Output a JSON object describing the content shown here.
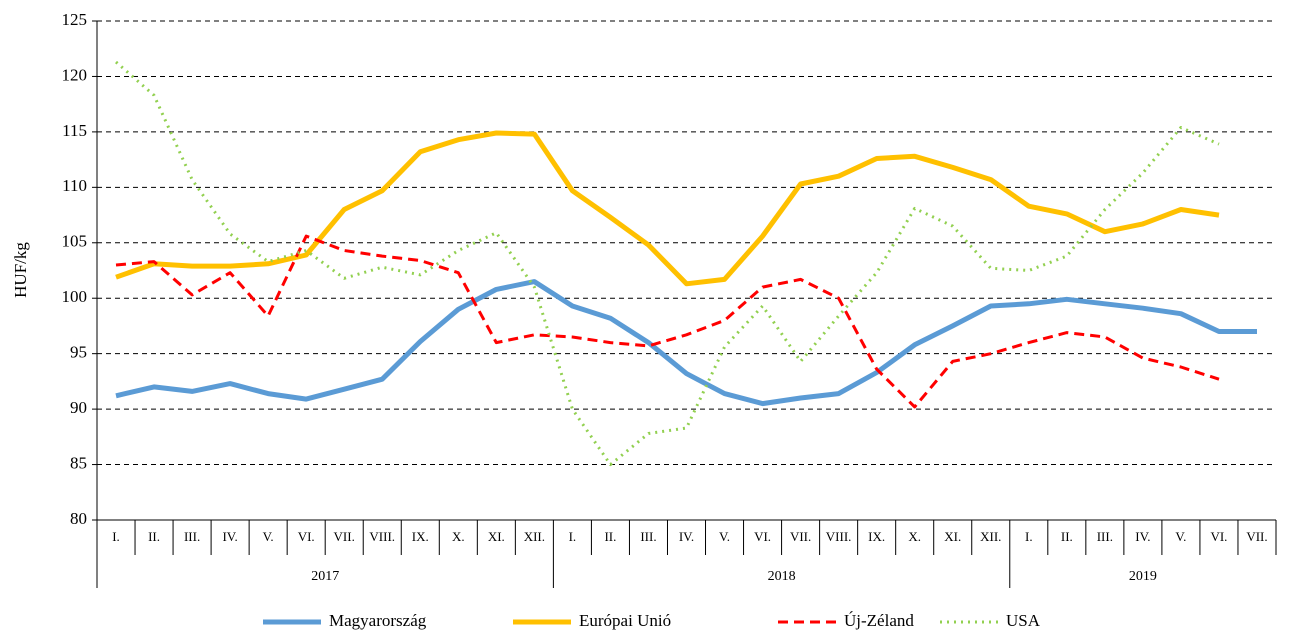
{
  "chart_data": {
    "type": "line",
    "y_label": "HUF/kg",
    "groups": [
      {
        "name": "2017",
        "categories": [
          "I.",
          "II.",
          "III.",
          "IV.",
          "V.",
          "VI.",
          "VII.",
          "VIII.",
          "IX.",
          "X.",
          "XI.",
          "XII."
        ]
      },
      {
        "name": "2018",
        "categories": [
          "I.",
          "II.",
          "III.",
          "IV.",
          "V.",
          "VI.",
          "VII.",
          "VIII.",
          "IX.",
          "X.",
          "XI.",
          "XII."
        ]
      },
      {
        "name": "2019",
        "categories": [
          "I.",
          "II.",
          "III.",
          "IV.",
          "V.",
          "VI.",
          "VII."
        ]
      }
    ],
    "series": [
      {
        "name": "Magyarország",
        "color": "#5b9bd5",
        "dash": "solid",
        "values": [
          91.2,
          92.0,
          91.6,
          92.3,
          91.4,
          90.9,
          91.8,
          92.7,
          96.1,
          99.0,
          100.8,
          101.5,
          99.3,
          98.2,
          96.0,
          93.2,
          91.4,
          90.5,
          91.0,
          91.4,
          93.3,
          95.8,
          97.5,
          99.3,
          99.5,
          99.9,
          99.5,
          99.1,
          98.6,
          97.0,
          97.0
        ]
      },
      {
        "name": "Európai Unió",
        "color": "#ffc000",
        "dash": "solid",
        "values": [
          101.9,
          103.1,
          102.9,
          102.9,
          103.1,
          103.9,
          108.0,
          109.7,
          113.2,
          114.3,
          114.9,
          114.8,
          109.7,
          107.3,
          104.8,
          101.3,
          101.7,
          105.6,
          110.3,
          111.0,
          112.6,
          112.8,
          111.8,
          110.7,
          108.3,
          107.6,
          106.0,
          106.7,
          108.0,
          107.5,
          null
        ]
      },
      {
        "name": "Új-Zéland",
        "color": "#ff0000",
        "dash": "dashed",
        "values": [
          103.0,
          103.3,
          100.3,
          102.3,
          98.4,
          105.6,
          104.3,
          103.8,
          103.4,
          102.3,
          96.0,
          96.7,
          96.5,
          96.0,
          95.7,
          96.7,
          98.0,
          101.0,
          101.7,
          100.0,
          93.6,
          90.2,
          94.3,
          95.0,
          96.0,
          96.9,
          96.5,
          94.6,
          93.8,
          92.7,
          null
        ]
      },
      {
        "name": "USA",
        "color": "#92d050",
        "dash": "dotted",
        "values": [
          121.3,
          118.3,
          110.7,
          105.8,
          103.3,
          104.3,
          101.8,
          102.8,
          102.1,
          104.3,
          105.9,
          101.0,
          90.0,
          85.0,
          87.8,
          88.3,
          95.6,
          99.3,
          94.3,
          98.4,
          102.3,
          108.1,
          106.5,
          102.7,
          102.5,
          103.8,
          108.0,
          111.3,
          115.4,
          113.9,
          null
        ]
      }
    ],
    "ylim": [
      80,
      125
    ],
    "yticks": [
      80,
      85,
      90,
      95,
      100,
      105,
      110,
      115,
      120,
      125
    ],
    "grid": true,
    "legend": "bottom"
  }
}
